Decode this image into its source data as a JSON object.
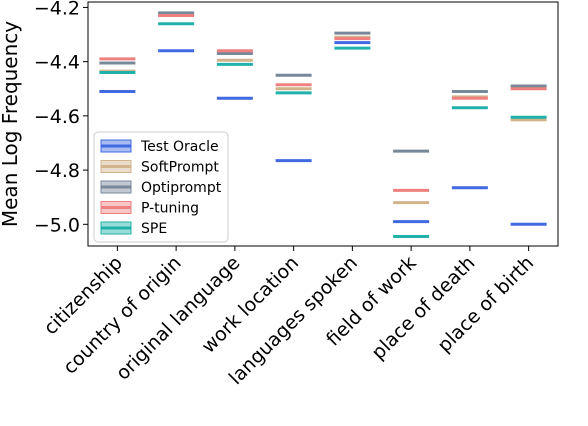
{
  "chart_data": {
    "type": "scatter",
    "marker": "horizontal-line",
    "title": "",
    "xlabel": "",
    "ylabel": "Mean Log Frequency",
    "ylim": [
      -5.08,
      -4.18
    ],
    "yticks": [
      -4.2,
      -4.4,
      -4.6,
      -4.8,
      -5.0
    ],
    "ytick_labels": [
      "−4.2",
      "−4.4",
      "−4.6",
      "−4.8",
      "−5.0"
    ],
    "categories": [
      "citizenship",
      "country of origin",
      "original language",
      "work location",
      "languages spoken",
      "field of work",
      "place of death",
      "place of birth"
    ],
    "grid": false,
    "legend_position": "lower-left",
    "series": [
      {
        "name": "Test Oracle",
        "color": "#4169e1",
        "values": [
          -4.51,
          -4.36,
          -4.535,
          -4.765,
          -4.33,
          -4.99,
          -4.865,
          -5.0
        ]
      },
      {
        "name": "SoftPrompt",
        "color": "#d2b48c",
        "values": [
          -4.435,
          -4.225,
          -4.395,
          -4.5,
          -4.31,
          -4.92,
          -4.53,
          -4.615
        ]
      },
      {
        "name": "Optiprompt",
        "color": "#778899",
        "values": [
          -4.405,
          -4.22,
          -4.37,
          -4.45,
          -4.295,
          -4.73,
          -4.51,
          -4.49
        ]
      },
      {
        "name": "P-tuning",
        "color": "#f08080",
        "values": [
          -4.39,
          -4.23,
          -4.36,
          -4.485,
          -4.315,
          -4.875,
          -4.535,
          -4.5
        ]
      },
      {
        "name": "SPE",
        "color": "#20b2aa",
        "values": [
          -4.44,
          -4.26,
          -4.41,
          -4.515,
          -4.35,
          -5.045,
          -4.57,
          -4.605
        ]
      }
    ]
  }
}
